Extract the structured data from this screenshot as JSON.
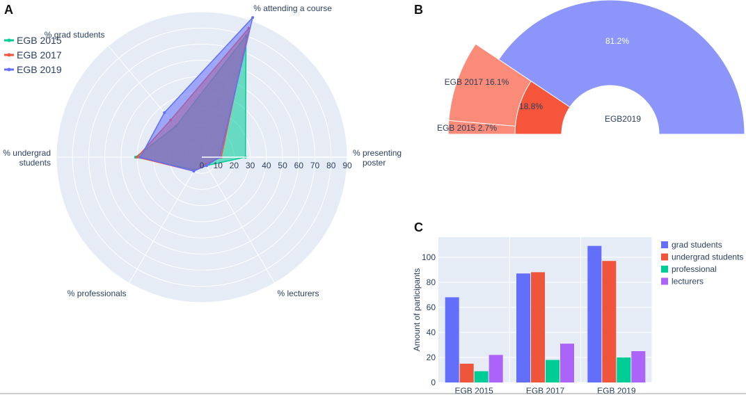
{
  "chart_data": [
    {
      "type": "radar",
      "panel_label": "A",
      "axes": [
        "% attending a course",
        "% grad students",
        "% undergrad students",
        "% professionals",
        "% lecturers",
        "% presenting poster"
      ],
      "axis_labels": [
        [
          "% attending a course"
        ],
        [
          "% grad students"
        ],
        [
          "% undergrad",
          "students"
        ],
        [
          "% professionals"
        ],
        [
          "% lecturers"
        ],
        [
          "% presenting",
          "poster"
        ]
      ],
      "radial_range": [
        0,
        90
      ],
      "radial_ticks": [
        "0",
        "10",
        "20",
        "30",
        "40",
        "50",
        "60",
        "70",
        "80",
        "90"
      ],
      "series": [
        {
          "name": "EGB 2015",
          "color": "#00cc96",
          "values": [
            80,
            25,
            41,
            9,
            6,
            27
          ]
        },
        {
          "name": "EGB 2017",
          "color": "#ef553b",
          "values": [
            85,
            30,
            40,
            10,
            5,
            12
          ]
        },
        {
          "name": "EGB 2019",
          "color": "#636efa",
          "values": [
            92,
            36,
            38,
            10,
            6,
            11
          ]
        }
      ],
      "legend": "top-left"
    },
    {
      "type": "sunburst",
      "panel_label": "B",
      "root_label": "EGB2019",
      "segments": [
        {
          "label": "81.2%",
          "value": 81.2,
          "color": "#8c96fa",
          "ring": "inner"
        },
        {
          "label": "18.8%",
          "value": 18.8,
          "color": "#f4553b",
          "ring": "inner"
        },
        {
          "label": "EGB 2017 16.1%",
          "value": 16.1,
          "color": "#f98b78",
          "ring": "outer"
        },
        {
          "label": "EGB 2015 2.7%",
          "value": 2.7,
          "color": "#f98b78",
          "ring": "outer"
        }
      ]
    },
    {
      "type": "bar",
      "panel_label": "C",
      "categories": [
        "EGB 2015",
        "EGB 2017",
        "EGB 2019"
      ],
      "series": [
        {
          "name": "grad students",
          "color": "#636efa",
          "values": [
            68,
            87,
            109
          ]
        },
        {
          "name": "undergrad students",
          "color": "#ef553b",
          "values": [
            15,
            88,
            97
          ]
        },
        {
          "name": "professional",
          "color": "#00cc96",
          "values": [
            9,
            18,
            20
          ]
        },
        {
          "name": "lecturers",
          "color": "#ab63fa",
          "values": [
            22,
            31,
            25
          ]
        }
      ],
      "xlabel": "",
      "ylabel": "Amount of participants",
      "ylim": [
        0,
        116
      ],
      "yticks": [
        "0",
        "20",
        "40",
        "60",
        "80",
        "100"
      ],
      "legend": "right"
    }
  ]
}
